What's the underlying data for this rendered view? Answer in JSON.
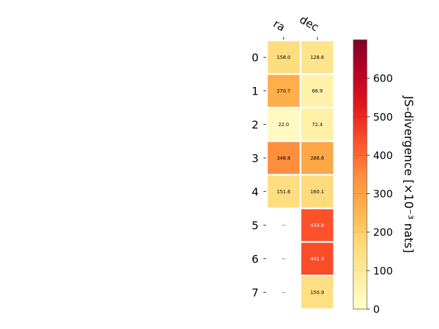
{
  "chart_data": {
    "type": "heatmap",
    "columns": [
      "ra",
      "dec"
    ],
    "rows": [
      "0",
      "1",
      "2",
      "3",
      "4",
      "5",
      "6",
      "7"
    ],
    "values": [
      [
        158.0,
        128.6
      ],
      [
        270.7,
        66.9
      ],
      [
        22.0,
        72.4
      ],
      [
        348.8,
        288.6
      ],
      [
        151.6,
        160.1
      ],
      [
        null,
        433.9
      ],
      [
        null,
        441.3
      ],
      [
        null,
        150.9
      ]
    ],
    "cell_labels": [
      [
        "158.0",
        "128.6"
      ],
      [
        "270.7",
        "66.9"
      ],
      [
        "22.0",
        "72.4"
      ],
      [
        "348.8",
        "288.6"
      ],
      [
        "151.6",
        "160.1"
      ],
      [
        "--",
        "433.9"
      ],
      [
        "--",
        "441.3"
      ],
      [
        "--",
        "150.9"
      ]
    ],
    "missing_label": "--",
    "colorbar": {
      "label": "JS-divergence [×10⁻³ nats]",
      "range": [
        0,
        700
      ],
      "ticks": [
        0,
        100,
        200,
        300,
        400,
        500,
        600
      ],
      "tick_labels": [
        "0",
        "100",
        "200",
        "300",
        "400",
        "500",
        "600"
      ],
      "colormap": "YlOrRd"
    },
    "colors": {
      "cell_border": "#ffffff",
      "missing_cell": "#ffffff",
      "text_light": "#ffffff",
      "text_dark": "#000000"
    }
  }
}
